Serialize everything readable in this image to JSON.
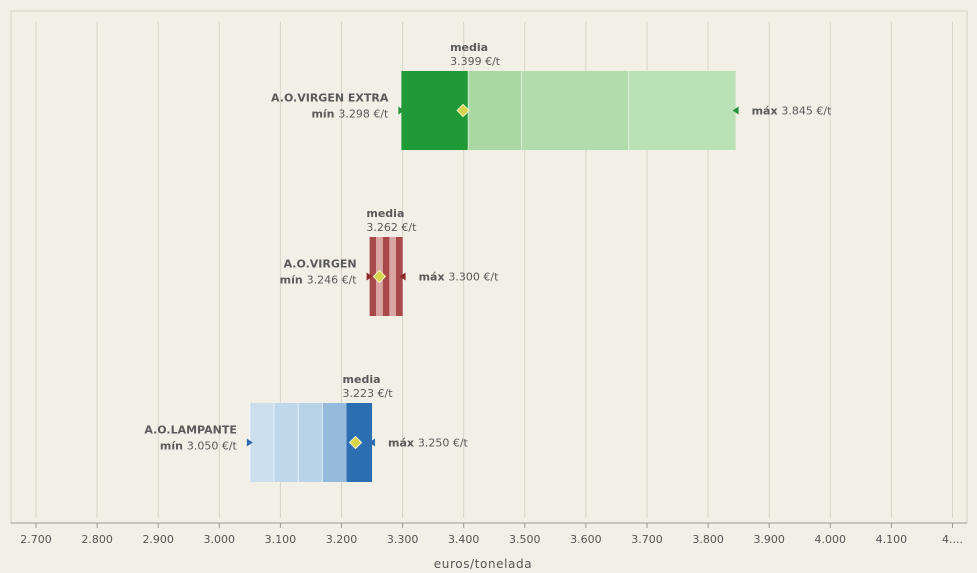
{
  "chart_data": {
    "type": "range_bar",
    "xlabel": "euros/tonelada",
    "xlim": [
      2700,
      4200
    ],
    "x_ticks": [
      "2.700",
      "2.800",
      "2.900",
      "3.000",
      "3.100",
      "3.200",
      "3.300",
      "3.400",
      "3.500",
      "3.600",
      "3.700",
      "3.800",
      "3.900",
      "4.000",
      "4.100",
      "4...."
    ],
    "x_tick_values": [
      2700,
      2800,
      2900,
      3000,
      3100,
      3200,
      3300,
      3400,
      3500,
      3600,
      3700,
      3800,
      3900,
      4000,
      4100,
      4200
    ],
    "grid": true,
    "legend": "none",
    "series": [
      {
        "name": "A.O.VIRGEN EXTRA",
        "min": 3298,
        "mean": 3399,
        "max": 3845,
        "min_label": "mín",
        "min_text": "3.298 €/t",
        "mean_label": "media",
        "mean_text": "3.399 €/t",
        "max_label": "máx",
        "max_text": "3.845 €/t",
        "color_dark": "#1f9a37",
        "color_light": "#a9d8a4",
        "marker_color": "#22933a"
      },
      {
        "name": "A.O.VIRGEN",
        "min": 3246,
        "mean": 3262,
        "max": 3300,
        "min_label": "mín",
        "min_text": "3.246 €/t",
        "mean_label": "media",
        "mean_text": "3.262 €/t",
        "max_label": "máx",
        "max_text": "3.300 €/t",
        "color_dark": "#a8484a",
        "color_light": "#d9a6a3",
        "marker_color": "#8e2a2c"
      },
      {
        "name": "A.O.LAMPANTE",
        "min": 3050,
        "mean": 3223,
        "max": 3250,
        "min_label": "mín",
        "min_text": "3.050 €/t",
        "mean_label": "media",
        "mean_text": "3.223 €/t",
        "max_label": "máx",
        "max_text": "3.250 €/t",
        "color_dark": "#2b6fb2",
        "color_light": "#b8d3e8",
        "marker_color": "#2f6db0"
      }
    ],
    "mean_marker_color": "#d6d34a"
  }
}
